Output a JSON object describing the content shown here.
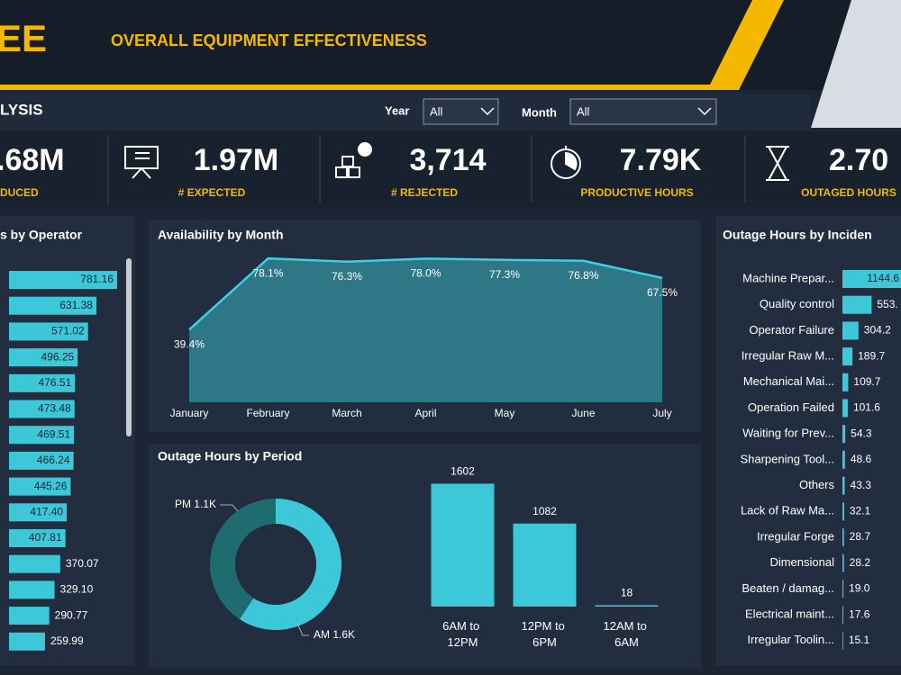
{
  "header": {
    "logo": "EE",
    "title": "OVERALL EQUIPMENT  EFFECTIVENESS",
    "section": "LYSIS"
  },
  "filters": [
    {
      "label": "Year",
      "value": "All"
    },
    {
      "label": "Month",
      "value": "All"
    }
  ],
  "kpis": [
    {
      "value": ".68M",
      "label": "DUCED"
    },
    {
      "value": "1.97M",
      "label": "# EXPECTED"
    },
    {
      "value": "3,714",
      "label": "# REJECTED"
    },
    {
      "value": "7.79K",
      "label": "PRODUCTIVE HOURS"
    },
    {
      "value": "2.70",
      "label": "OUTAGED HOURS"
    }
  ],
  "chart_data": [
    {
      "type": "bar",
      "orientation": "horizontal",
      "title": "s by Operator",
      "color": "#3cc8d8",
      "values": [
        781.16,
        631.38,
        571.02,
        496.25,
        476.51,
        473.48,
        469.51,
        466.24,
        445.26,
        417.4,
        407.81,
        370.07,
        329.1,
        290.77,
        259.99
      ],
      "value_labels": [
        "781.16",
        "631.38",
        "571.02",
        "496.25",
        "476.51",
        "473.48",
        "469.51",
        "466.24",
        "445.26",
        "417.40",
        "407.81",
        "370.07",
        "329.10",
        "290.77",
        "259.99"
      ],
      "xlim": [
        0,
        850
      ]
    },
    {
      "type": "area",
      "title": "Availability by Month",
      "color": "#3fd0e0",
      "categories": [
        "January",
        "February",
        "March",
        "April",
        "May",
        "June",
        "July"
      ],
      "values": [
        39.4,
        78.1,
        76.3,
        78.0,
        77.3,
        76.8,
        67.5
      ],
      "value_labels": [
        "39.4%",
        "78.1%",
        "76.3%",
        "78.0%",
        "77.3%",
        "76.8%",
        "67.5%"
      ],
      "ylim": [
        0,
        85
      ]
    },
    {
      "type": "donut",
      "title": "Outage Hours by Period",
      "categories": [
        "PM",
        "AM"
      ],
      "values": [
        1100,
        1600
      ],
      "value_labels": [
        "PM 1.1K",
        "AM 1.6K"
      ],
      "colors": [
        "#1e6b70",
        "#3cc8d8"
      ]
    },
    {
      "type": "bar",
      "color": "#3cc8d8",
      "categories": [
        "6AM to 12PM",
        "12PM to 6PM",
        "12AM to 6AM"
      ],
      "values": [
        1602,
        1082,
        18
      ],
      "ylim": [
        0,
        1900
      ]
    },
    {
      "type": "bar",
      "orientation": "horizontal",
      "title": "Outage Hours by Inciden",
      "color": "#3cc8d8",
      "categories": [
        "Machine Prepar...",
        "Quality control",
        "Operator Failure",
        "Irregular Raw M...",
        "Mechanical Mai...",
        "Operation Failed",
        "Waiting for Prev...",
        "Sharpening Tool...",
        "Others",
        "Lack of Raw Ma...",
        "Irregular Forge",
        "Dimensional",
        "Beaten / damag...",
        "Electrical maint...",
        "Irregular Toolin..."
      ],
      "values": [
        1144.6,
        553,
        304.2,
        189.7,
        109.7,
        101.6,
        54.3,
        48.6,
        43.3,
        32.1,
        28.7,
        28.2,
        19.0,
        17.6,
        15.1
      ],
      "value_labels": [
        "1144.6",
        "553.",
        "304.2",
        "189.7",
        "109.7",
        "101.6",
        "54.3",
        "48.6",
        "43.3",
        "32.1",
        "28.7",
        "28.2",
        "19.0",
        "17.6",
        "15.1"
      ],
      "xlim": [
        0,
        1100
      ]
    }
  ]
}
